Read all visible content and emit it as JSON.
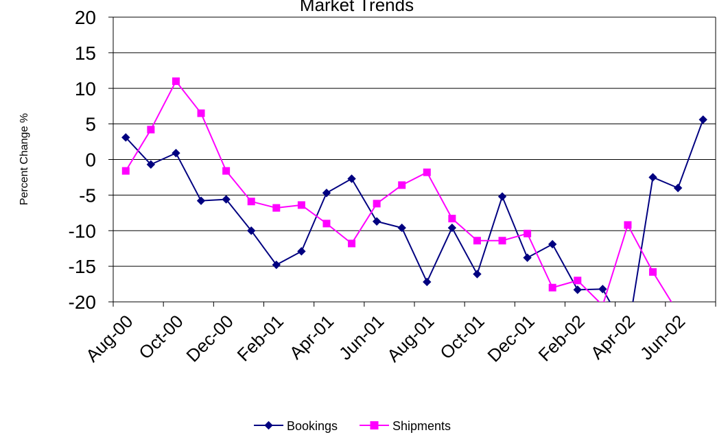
{
  "chart_data": {
    "type": "line",
    "title": "Market Trends",
    "ylabel": "Percent Change %",
    "xlabel": "",
    "ylim": [
      -20,
      20
    ],
    "yticks": [
      20,
      15,
      10,
      5,
      0,
      -5,
      -10,
      -15,
      -20
    ],
    "grid": "horizontal",
    "legend_position": "bottom",
    "x": [
      "Aug-00",
      "Sep-00",
      "Oct-00",
      "Nov-00",
      "Dec-00",
      "Jan-01",
      "Feb-01",
      "Mar-01",
      "Apr-01",
      "May-01",
      "Jun-01",
      "Jul-01",
      "Aug-01",
      "Sep-01",
      "Oct-01",
      "Nov-01",
      "Dec-01",
      "Jan-02",
      "Feb-02",
      "Mar-02",
      "Apr-02",
      "May-02",
      "Jun-02",
      "Jul-02"
    ],
    "xtick_labels": [
      "Aug-00",
      "Oct-00",
      "Dec-00",
      "Feb-01",
      "Apr-01",
      "Jun-01",
      "Aug-01",
      "Oct-01",
      "Dec-01",
      "Feb-02",
      "Apr-02",
      "Jun-02"
    ],
    "series": [
      {
        "name": "Bookings",
        "color": "#000080",
        "marker": "diamond",
        "values": [
          3.1,
          -0.7,
          0.9,
          -5.8,
          -5.6,
          -10.0,
          -14.8,
          -12.9,
          -4.7,
          -2.7,
          -8.7,
          -9.6,
          -17.2,
          -9.6,
          -16.1,
          -5.2,
          -13.8,
          -11.9,
          -18.3,
          -18.2,
          -24.5,
          -2.5,
          -4.0,
          5.6
        ]
      },
      {
        "name": "Shipments",
        "color": "#FF00FF",
        "marker": "square",
        "values": [
          -1.6,
          4.2,
          11.0,
          6.5,
          -1.6,
          -5.9,
          -6.8,
          -6.4,
          -9.0,
          -11.8,
          -6.2,
          -3.6,
          -1.8,
          -8.3,
          -11.4,
          -11.4,
          -10.4,
          -18.0,
          -17.0,
          -20.5,
          -9.2,
          -15.8,
          -21.5,
          null
        ]
      }
    ]
  }
}
